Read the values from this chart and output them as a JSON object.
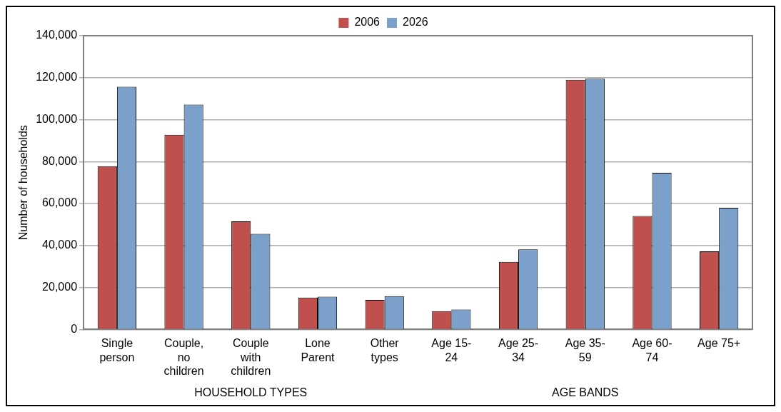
{
  "chart_data": {
    "type": "bar",
    "ylabel": "Number of households",
    "categories": [
      "Single person",
      "Couple, no children",
      "Couple with children",
      "Lone Parent",
      "Other types",
      "Age 15-24",
      "Age 25-34",
      "Age 35-59",
      "Age 60-74",
      "Age 75+"
    ],
    "series": [
      {
        "name": "2006",
        "color": "#c0504d",
        "values": [
          77800,
          92800,
          51500,
          15200,
          14100,
          8700,
          32200,
          119000,
          54100,
          37200
        ]
      },
      {
        "name": "2026",
        "color": "#7ba0c9",
        "values": [
          115700,
          107200,
          45600,
          15600,
          15900,
          9500,
          38200,
          119500,
          74700,
          58000
        ]
      }
    ],
    "ylim": [
      0,
      140000
    ],
    "yticks": [
      {
        "value": 0,
        "label": "0"
      },
      {
        "value": 20000,
        "label": "20,000"
      },
      {
        "value": 40000,
        "label": "40,000"
      },
      {
        "value": 60000,
        "label": "60,000"
      },
      {
        "value": 80000,
        "label": "80,000"
      },
      {
        "value": 100000,
        "label": "100,000"
      },
      {
        "value": 120000,
        "label": "120,000"
      },
      {
        "value": 140000,
        "label": "140,000"
      }
    ],
    "grid": "y",
    "legend": "top",
    "annotations": [
      "HOUSEHOLD TYPES",
      "AGE BANDS"
    ]
  }
}
